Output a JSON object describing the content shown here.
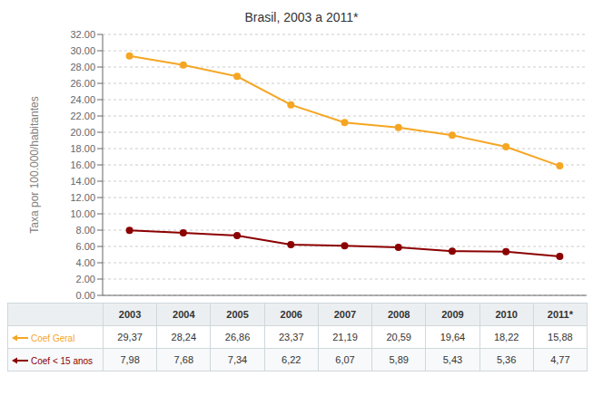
{
  "chart_data": {
    "type": "line",
    "title": "Brasil, 2003 a 2011*",
    "ylabel": "Taxa por 100.000/habitantes",
    "categories": [
      "2003",
      "2004",
      "2005",
      "2006",
      "2007",
      "2008",
      "2009",
      "2010",
      "2011*"
    ],
    "series": [
      {
        "name": "Coef Geral",
        "color": "#F5A623",
        "values": [
          29.37,
          28.24,
          26.86,
          23.37,
          21.19,
          20.59,
          19.64,
          18.22,
          15.88
        ],
        "value_labels": [
          "29,37",
          "28,24",
          "26,86",
          "23,37",
          "21,19",
          "20,59",
          "19,64",
          "18,22",
          "15,88"
        ]
      },
      {
        "name": "Coef < 15 anos",
        "color": "#8B0000",
        "values": [
          7.98,
          7.68,
          7.34,
          6.22,
          6.07,
          5.89,
          5.43,
          5.36,
          4.77
        ],
        "value_labels": [
          "7,98",
          "7,68",
          "7,34",
          "6,22",
          "6,07",
          "5,89",
          "5,43",
          "5,36",
          "4,77"
        ]
      }
    ],
    "ylim": [
      0,
      32
    ],
    "yticks": [
      {
        "value": 0,
        "label": "0.00"
      },
      {
        "value": 2,
        "label": "2.00"
      },
      {
        "value": 4,
        "label": "4.00"
      },
      {
        "value": 6,
        "label": "6.00"
      },
      {
        "value": 8,
        "label": "8.00"
      },
      {
        "value": 10,
        "label": "10.00"
      },
      {
        "value": 12,
        "label": "12.00"
      },
      {
        "value": 14,
        "label": "14.00"
      },
      {
        "value": 16,
        "label": "16.00"
      },
      {
        "value": 18,
        "label": "18.00"
      },
      {
        "value": 20,
        "label": "20.00"
      },
      {
        "value": 22,
        "label": "22.00"
      },
      {
        "value": 24,
        "label": "24.00"
      },
      {
        "value": 26,
        "label": "26.00"
      },
      {
        "value": 28,
        "label": "28.00"
      },
      {
        "value": 30,
        "label": "30.00"
      },
      {
        "value": 32,
        "label": "32.00"
      }
    ],
    "grid": true,
    "tick_labels": "y",
    "marker": "circle"
  }
}
